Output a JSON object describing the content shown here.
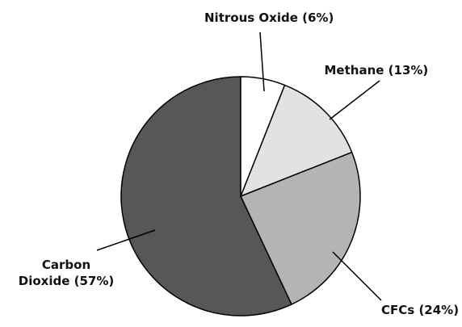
{
  "chart_data": {
    "type": "pie",
    "categories": [
      "Nitrous Oxide",
      "Methane",
      "CFCs",
      "Carbon Dioxide"
    ],
    "values": [
      6,
      13,
      24,
      57
    ],
    "value_labels": [
      "(6%)",
      "(13%)",
      "(24%)",
      "(57%)"
    ],
    "colors": [
      "#ffffff",
      "#e2e2e2",
      "#b4b4b4",
      "#575757"
    ]
  }
}
